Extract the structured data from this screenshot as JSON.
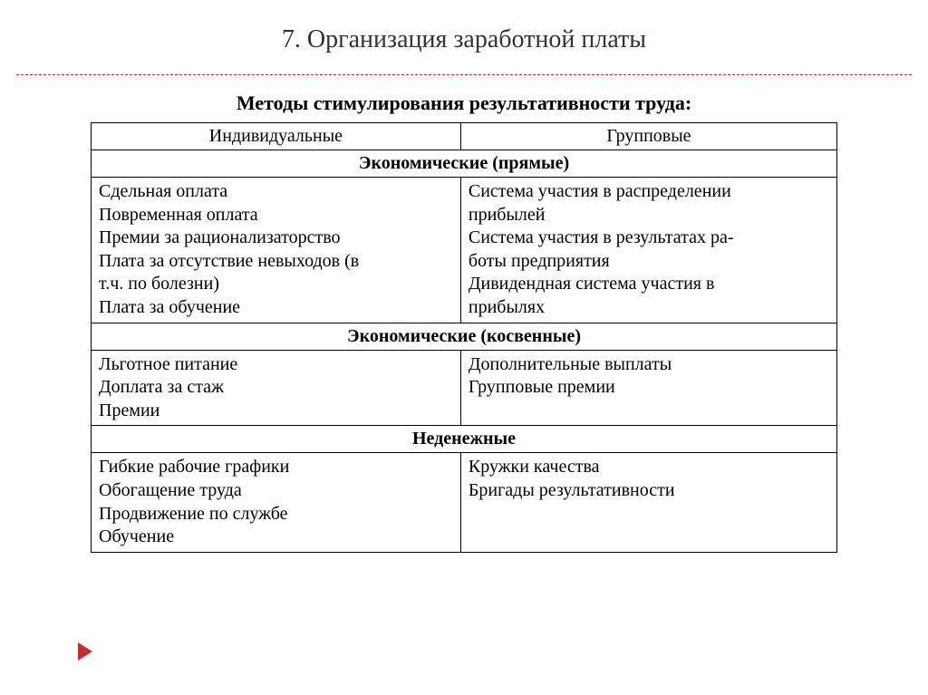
{
  "page_title": "7. Организация заработной платы",
  "subtitle": "Методы стимулирования результативности труда:",
  "cols": {
    "left": "Индивидуальные",
    "right": "Групповые"
  },
  "sections": [
    {
      "header": "Экономические (прямые)",
      "left": [
        "Сдельная оплата",
        "Повременная оплата",
        "Премии за рационализаторство",
        "Плата за отсутствие невыходов (в",
        "т.ч. по болезни)",
        "Плата за обучение"
      ],
      "right": [
        "Система участия в распределении",
        "прибылей",
        "Система участия в результатах ра-",
        "боты предприятия",
        "Дивидендная система участия в",
        "прибылях"
      ]
    },
    {
      "header": "Экономические (косвенные)",
      "left": [
        "Льготное питание",
        "Доплата за стаж",
        "Премии"
      ],
      "right": [
        "Дополнительные выплаты",
        "Групповые премии"
      ]
    },
    {
      "header": "Неденежные",
      "left": [
        "Гибкие рабочие графики",
        "Обогащение труда",
        "Продвижение по службе",
        "Обучение"
      ],
      "right": [
        "Кружки качества",
        "Бригады результативности"
      ]
    }
  ],
  "style": {
    "accent_color": "#c03030",
    "border_color": "#000000",
    "bg_color": "#ffffff",
    "title_fontsize": 28,
    "subtitle_fontsize": 22,
    "cell_fontsize": 20,
    "col_widths_pct": [
      50,
      50
    ]
  }
}
